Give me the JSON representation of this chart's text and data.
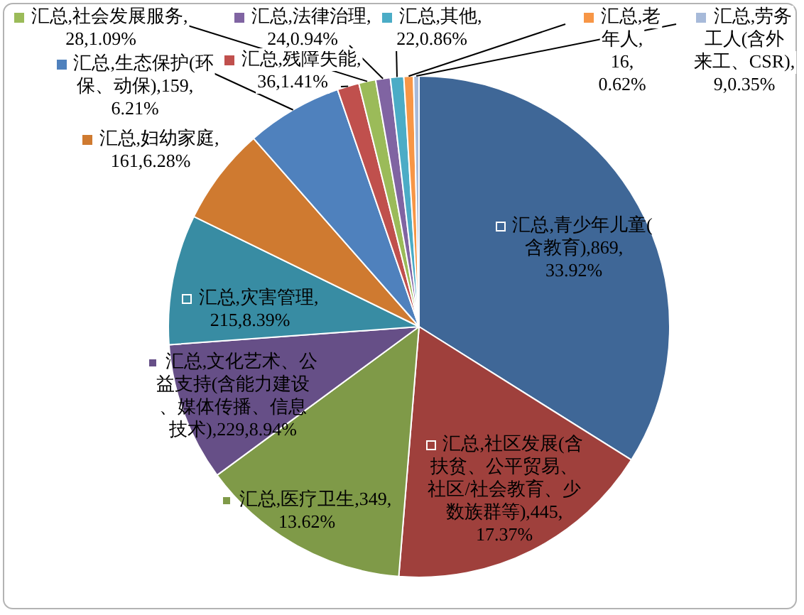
{
  "chart_data": {
    "type": "pie",
    "categories": [
      "汇总,青少年儿童(含教育)",
      "汇总,社区发展(含扶贫、公平贸易、社区/社会教育、少数族群等)",
      "汇总,医疗卫生",
      "汇总,文化艺术、公益支持(含能力建设、媒体传播、信息技术)",
      "汇总,灾害管理",
      "汇总,妇幼家庭",
      "汇总,生态保护(环保、动保)",
      "汇总,残障失能",
      "汇总,社会发展服务",
      "汇总,法律治理",
      "汇总,其他",
      "汇总,老年人",
      "汇总,劳务工人(含外来工、CSR)"
    ],
    "values": [
      33.92,
      17.37,
      13.62,
      8.94,
      8.39,
      6.28,
      6.21,
      1.41,
      1.09,
      0.94,
      0.86,
      0.62,
      0.35
    ],
    "value_labels": [
      ",869,33.92%",
      ",445,17.37%",
      ",349,13.62%",
      ",229,8.94%",
      ",215,8.39%",
      ",161,6.28%",
      ",159,6.21%",
      ",36,1.41%",
      ",28,1.09%",
      ",24,0.94%",
      ",22,0.86%",
      ",16,0.62%",
      ",9,0.35%"
    ],
    "colors": [
      "#3f6797",
      "#9f403c",
      "#7f9a48",
      "#664f87",
      "#388ca3",
      "#cf7a30",
      "#4f81bd",
      "#c0504d",
      "#9bbb59",
      "#8064a2",
      "#4bacc6",
      "#f79646",
      "#a7bad9"
    ],
    "legend": "top"
  }
}
